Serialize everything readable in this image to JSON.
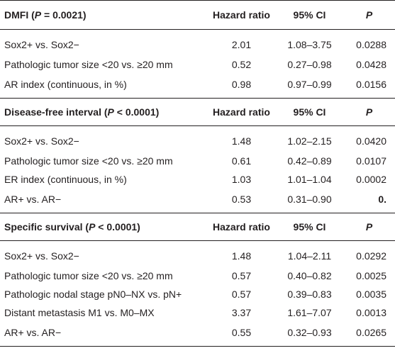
{
  "columns": {
    "hazard_ratio": "Hazard ratio",
    "ci": "95% CI",
    "p": "P"
  },
  "sections": [
    {
      "title_prefix": "DMFI (",
      "title_p": "P",
      "title_suffix": " = 0.0021)",
      "rows": [
        {
          "label": "Sox2+ vs. Sox2−",
          "hr": "2.01",
          "ci": "1.08–3.75",
          "p": "0.0288"
        },
        {
          "label": "Pathologic tumor size <20 vs. ≥20 mm",
          "hr": "0.52",
          "ci": "0.27–0.98",
          "p": "0.0428"
        },
        {
          "label": "AR index (continuous, in %)",
          "hr": "0.98",
          "ci": "0.97–0.99",
          "p": "0.0156"
        }
      ]
    },
    {
      "title_prefix": "Disease-free interval (",
      "title_p": "P",
      "title_suffix": " < 0.0001)",
      "rows": [
        {
          "label": "Sox2+ vs. Sox2−",
          "hr": "1.48",
          "ci": "1.02–2.15",
          "p": "0.0420"
        },
        {
          "label": "Pathologic tumor size <20 vs. ≥20 mm",
          "hr": "0.61",
          "ci": "0.42–0.89",
          "p": "0.0107"
        },
        {
          "label": "ER index (continuous, in %)",
          "hr": "1.03",
          "ci": "1.01–1.04",
          "p": "0.0002"
        },
        {
          "label": "AR+ vs. AR−",
          "hr": "0.53",
          "ci": "0.31–0.90",
          "p": "0."
        }
      ]
    },
    {
      "title_prefix": "Specific survival (",
      "title_p": "P",
      "title_suffix": " < 0.0001)",
      "rows": [
        {
          "label": "Sox2+ vs. Sox2−",
          "hr": "1.48",
          "ci": "1.04–2.11",
          "p": "0.0292"
        },
        {
          "label": "Pathologic tumor size <20 vs. ≥20 mm",
          "hr": "0.57",
          "ci": "0.40–0.82",
          "p": "0.0025"
        },
        {
          "label": "Pathologic nodal stage pN0–NX vs. pN+",
          "hr": "0.57",
          "ci": "0.39–0.83",
          "p": "0.0035"
        },
        {
          "label": "Distant metastasis M1 vs. M0–MX",
          "hr": "3.37",
          "ci": "1.61–7.07",
          "p": "0.0013"
        },
        {
          "label": "AR+ vs. AR−",
          "hr": "0.55",
          "ci": "0.32–0.93",
          "p": "0.0265"
        }
      ]
    }
  ]
}
